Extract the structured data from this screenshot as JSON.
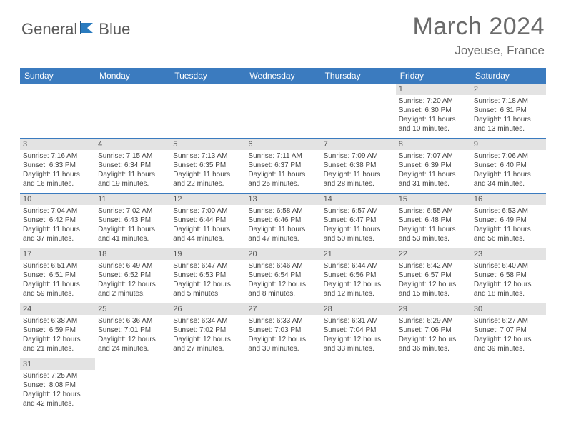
{
  "brand": {
    "general": "General",
    "blue": "Blue"
  },
  "title": "March 2024",
  "location": "Joyeuse, France",
  "colors": {
    "header_bar": "#3b7bbf",
    "daynum_bg": "#e3e3e3",
    "rule": "#3b7bbf",
    "text": "#444444",
    "title_text": "#6a6a6a"
  },
  "days_of_week": [
    "Sunday",
    "Monday",
    "Tuesday",
    "Wednesday",
    "Thursday",
    "Friday",
    "Saturday"
  ],
  "weeks": [
    [
      null,
      null,
      null,
      null,
      null,
      {
        "n": "1",
        "sunrise": "Sunrise: 7:20 AM",
        "sunset": "Sunset: 6:30 PM",
        "daylight1": "Daylight: 11 hours",
        "daylight2": "and 10 minutes."
      },
      {
        "n": "2",
        "sunrise": "Sunrise: 7:18 AM",
        "sunset": "Sunset: 6:31 PM",
        "daylight1": "Daylight: 11 hours",
        "daylight2": "and 13 minutes."
      }
    ],
    [
      {
        "n": "3",
        "sunrise": "Sunrise: 7:16 AM",
        "sunset": "Sunset: 6:33 PM",
        "daylight1": "Daylight: 11 hours",
        "daylight2": "and 16 minutes."
      },
      {
        "n": "4",
        "sunrise": "Sunrise: 7:15 AM",
        "sunset": "Sunset: 6:34 PM",
        "daylight1": "Daylight: 11 hours",
        "daylight2": "and 19 minutes."
      },
      {
        "n": "5",
        "sunrise": "Sunrise: 7:13 AM",
        "sunset": "Sunset: 6:35 PM",
        "daylight1": "Daylight: 11 hours",
        "daylight2": "and 22 minutes."
      },
      {
        "n": "6",
        "sunrise": "Sunrise: 7:11 AM",
        "sunset": "Sunset: 6:37 PM",
        "daylight1": "Daylight: 11 hours",
        "daylight2": "and 25 minutes."
      },
      {
        "n": "7",
        "sunrise": "Sunrise: 7:09 AM",
        "sunset": "Sunset: 6:38 PM",
        "daylight1": "Daylight: 11 hours",
        "daylight2": "and 28 minutes."
      },
      {
        "n": "8",
        "sunrise": "Sunrise: 7:07 AM",
        "sunset": "Sunset: 6:39 PM",
        "daylight1": "Daylight: 11 hours",
        "daylight2": "and 31 minutes."
      },
      {
        "n": "9",
        "sunrise": "Sunrise: 7:06 AM",
        "sunset": "Sunset: 6:40 PM",
        "daylight1": "Daylight: 11 hours",
        "daylight2": "and 34 minutes."
      }
    ],
    [
      {
        "n": "10",
        "sunrise": "Sunrise: 7:04 AM",
        "sunset": "Sunset: 6:42 PM",
        "daylight1": "Daylight: 11 hours",
        "daylight2": "and 37 minutes."
      },
      {
        "n": "11",
        "sunrise": "Sunrise: 7:02 AM",
        "sunset": "Sunset: 6:43 PM",
        "daylight1": "Daylight: 11 hours",
        "daylight2": "and 41 minutes."
      },
      {
        "n": "12",
        "sunrise": "Sunrise: 7:00 AM",
        "sunset": "Sunset: 6:44 PM",
        "daylight1": "Daylight: 11 hours",
        "daylight2": "and 44 minutes."
      },
      {
        "n": "13",
        "sunrise": "Sunrise: 6:58 AM",
        "sunset": "Sunset: 6:46 PM",
        "daylight1": "Daylight: 11 hours",
        "daylight2": "and 47 minutes."
      },
      {
        "n": "14",
        "sunrise": "Sunrise: 6:57 AM",
        "sunset": "Sunset: 6:47 PM",
        "daylight1": "Daylight: 11 hours",
        "daylight2": "and 50 minutes."
      },
      {
        "n": "15",
        "sunrise": "Sunrise: 6:55 AM",
        "sunset": "Sunset: 6:48 PM",
        "daylight1": "Daylight: 11 hours",
        "daylight2": "and 53 minutes."
      },
      {
        "n": "16",
        "sunrise": "Sunrise: 6:53 AM",
        "sunset": "Sunset: 6:49 PM",
        "daylight1": "Daylight: 11 hours",
        "daylight2": "and 56 minutes."
      }
    ],
    [
      {
        "n": "17",
        "sunrise": "Sunrise: 6:51 AM",
        "sunset": "Sunset: 6:51 PM",
        "daylight1": "Daylight: 11 hours",
        "daylight2": "and 59 minutes."
      },
      {
        "n": "18",
        "sunrise": "Sunrise: 6:49 AM",
        "sunset": "Sunset: 6:52 PM",
        "daylight1": "Daylight: 12 hours",
        "daylight2": "and 2 minutes."
      },
      {
        "n": "19",
        "sunrise": "Sunrise: 6:47 AM",
        "sunset": "Sunset: 6:53 PM",
        "daylight1": "Daylight: 12 hours",
        "daylight2": "and 5 minutes."
      },
      {
        "n": "20",
        "sunrise": "Sunrise: 6:46 AM",
        "sunset": "Sunset: 6:54 PM",
        "daylight1": "Daylight: 12 hours",
        "daylight2": "and 8 minutes."
      },
      {
        "n": "21",
        "sunrise": "Sunrise: 6:44 AM",
        "sunset": "Sunset: 6:56 PM",
        "daylight1": "Daylight: 12 hours",
        "daylight2": "and 12 minutes."
      },
      {
        "n": "22",
        "sunrise": "Sunrise: 6:42 AM",
        "sunset": "Sunset: 6:57 PM",
        "daylight1": "Daylight: 12 hours",
        "daylight2": "and 15 minutes."
      },
      {
        "n": "23",
        "sunrise": "Sunrise: 6:40 AM",
        "sunset": "Sunset: 6:58 PM",
        "daylight1": "Daylight: 12 hours",
        "daylight2": "and 18 minutes."
      }
    ],
    [
      {
        "n": "24",
        "sunrise": "Sunrise: 6:38 AM",
        "sunset": "Sunset: 6:59 PM",
        "daylight1": "Daylight: 12 hours",
        "daylight2": "and 21 minutes."
      },
      {
        "n": "25",
        "sunrise": "Sunrise: 6:36 AM",
        "sunset": "Sunset: 7:01 PM",
        "daylight1": "Daylight: 12 hours",
        "daylight2": "and 24 minutes."
      },
      {
        "n": "26",
        "sunrise": "Sunrise: 6:34 AM",
        "sunset": "Sunset: 7:02 PM",
        "daylight1": "Daylight: 12 hours",
        "daylight2": "and 27 minutes."
      },
      {
        "n": "27",
        "sunrise": "Sunrise: 6:33 AM",
        "sunset": "Sunset: 7:03 PM",
        "daylight1": "Daylight: 12 hours",
        "daylight2": "and 30 minutes."
      },
      {
        "n": "28",
        "sunrise": "Sunrise: 6:31 AM",
        "sunset": "Sunset: 7:04 PM",
        "daylight1": "Daylight: 12 hours",
        "daylight2": "and 33 minutes."
      },
      {
        "n": "29",
        "sunrise": "Sunrise: 6:29 AM",
        "sunset": "Sunset: 7:06 PM",
        "daylight1": "Daylight: 12 hours",
        "daylight2": "and 36 minutes."
      },
      {
        "n": "30",
        "sunrise": "Sunrise: 6:27 AM",
        "sunset": "Sunset: 7:07 PM",
        "daylight1": "Daylight: 12 hours",
        "daylight2": "and 39 minutes."
      }
    ],
    [
      {
        "n": "31",
        "sunrise": "Sunrise: 7:25 AM",
        "sunset": "Sunset: 8:08 PM",
        "daylight1": "Daylight: 12 hours",
        "daylight2": "and 42 minutes."
      },
      null,
      null,
      null,
      null,
      null,
      null
    ]
  ]
}
